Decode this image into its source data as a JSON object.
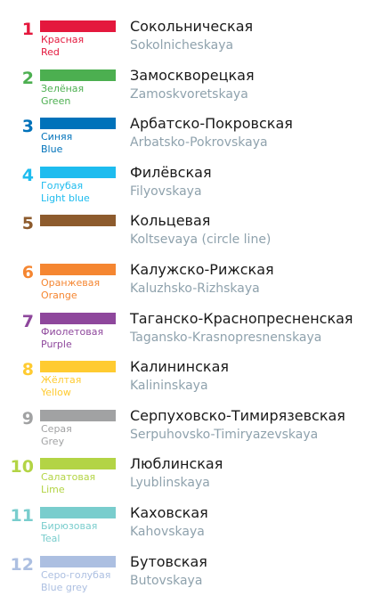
{
  "lines": [
    {
      "number": "1",
      "color": "#e4183d",
      "color_ru": "Красная",
      "color_en": "Red",
      "name_ru": "Сокольническая",
      "name_en": "Sokolnicheskaya"
    },
    {
      "number": "2",
      "color": "#4caf50",
      "color_ru": "Зелёная",
      "color_en": "Green",
      "name_ru": "Замоскворецкая",
      "name_en": "Zamoskvoretskaya"
    },
    {
      "number": "3",
      "color": "#0072ba",
      "color_ru": "Синяя",
      "color_en": "Blue",
      "name_ru": "Арбатско-Покровская",
      "name_en": "Arbatsko-Pokrovskaya"
    },
    {
      "number": "4",
      "color": "#1ebcef",
      "color_ru": "Голубая",
      "color_en": "Light blue",
      "name_ru": "Филёвская",
      "name_en": "Filyovskaya"
    },
    {
      "number": "5",
      "color": "#8d5b2d",
      "color_ru": "",
      "color_en": "",
      "name_ru": "Кольцевая",
      "name_en": "Koltsevaya (circle line)"
    },
    {
      "number": "6",
      "color": "#f58631",
      "color_ru": "Оранжевая",
      "color_en": "Orange",
      "name_ru": "Калужско-Рижская",
      "name_en": "Kaluzhsko-Rizhskaya"
    },
    {
      "number": "7",
      "color": "#8e479c",
      "color_ru": "Фиолетовая",
      "color_en": "Purple",
      "name_ru": "Таганско-Краснопресненская",
      "name_en": "Tagansko-Krasnopresnenskaya"
    },
    {
      "number": "8",
      "color": "#ffcb31",
      "color_ru": "Жёлтая",
      "color_en": "Yellow",
      "name_ru": "Калининская",
      "name_en": "Kalininskaya"
    },
    {
      "number": "9",
      "color": "#a1a2a3",
      "color_ru": "Серая",
      "color_en": "Grey",
      "name_ru": "Серпуховско-Тимирязевская",
      "name_en": "Serpuhovsko-Timiryazevskaya"
    },
    {
      "number": "10",
      "color": "#b3d445",
      "color_ru": "Салатовая",
      "color_en": "Lime",
      "name_ru": "Люблинская",
      "name_en": "Lyublinskaya"
    },
    {
      "number": "11",
      "color": "#79cdcd",
      "color_ru": "Бирюзовая",
      "color_en": "Teal",
      "name_ru": "Каховская",
      "name_en": "Kahovskaya"
    },
    {
      "number": "12",
      "color": "#acbfe1",
      "color_ru": "Серо-голубая",
      "color_en": "Blue grey",
      "name_ru": "Бутовская",
      "name_en": "Butovskaya"
    }
  ]
}
